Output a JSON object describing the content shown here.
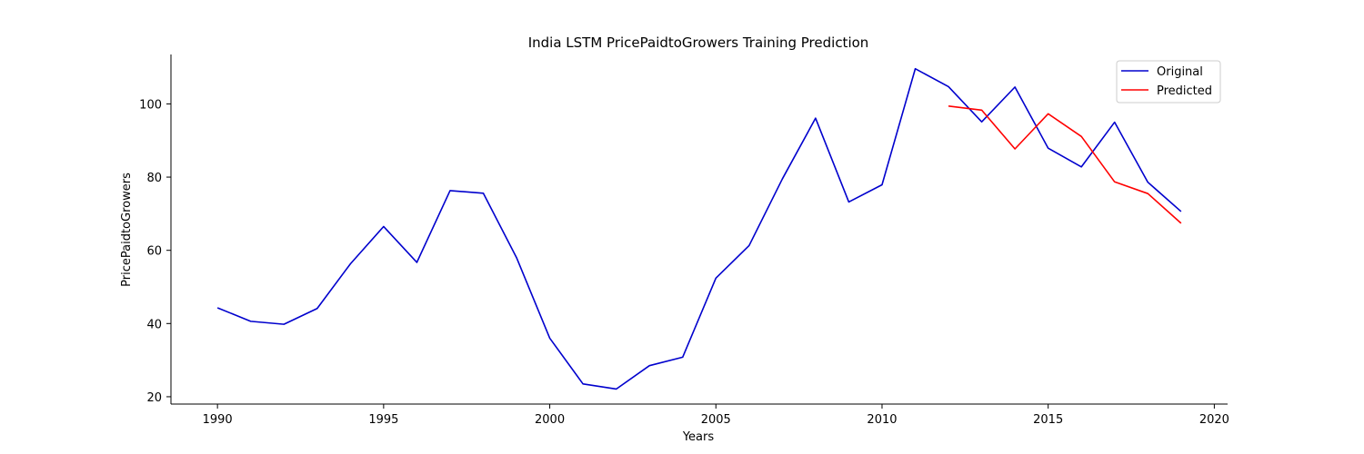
{
  "chart_data": {
    "type": "line",
    "title": "India LSTM PricePaidtoGrowers Training Prediction",
    "xlabel": "Years",
    "ylabel": "PricePaidtoGrowers",
    "xlim": [
      1988.6,
      2020.4
    ],
    "ylim": [
      18,
      113.5
    ],
    "xticks": [
      1990,
      1995,
      2000,
      2005,
      2010,
      2015,
      2020
    ],
    "yticks": [
      20,
      40,
      60,
      80,
      100
    ],
    "grid": false,
    "legend": "top-right",
    "series": [
      {
        "name": "Original",
        "color": "#0000cd",
        "x": [
          1990,
          1991,
          1992,
          1993,
          1994,
          1995,
          1996,
          1997,
          1998,
          1999,
          2000,
          2001,
          2002,
          2003,
          2004,
          2005,
          2006,
          2007,
          2008,
          2009,
          2010,
          2011,
          2012,
          2013,
          2014,
          2015,
          2016,
          2017,
          2018,
          2019
        ],
        "y": [
          44.3,
          40.6,
          39.8,
          44.1,
          56.3,
          66.5,
          56.7,
          76.3,
          75.6,
          58.0,
          36.0,
          23.5,
          22.1,
          28.5,
          30.8,
          52.4,
          61.3,
          79.5,
          96.1,
          73.2,
          77.9,
          109.6,
          104.7,
          95.1,
          104.6,
          87.9,
          82.8,
          95.0,
          78.6,
          70.6
        ]
      },
      {
        "name": "Predicted",
        "color": "#ff0000",
        "x": [
          2012,
          2013,
          2014,
          2015,
          2016,
          2017,
          2018,
          2019
        ],
        "y": [
          99.4,
          98.3,
          87.7,
          97.3,
          91.1,
          78.7,
          75.5,
          67.4
        ]
      }
    ]
  }
}
